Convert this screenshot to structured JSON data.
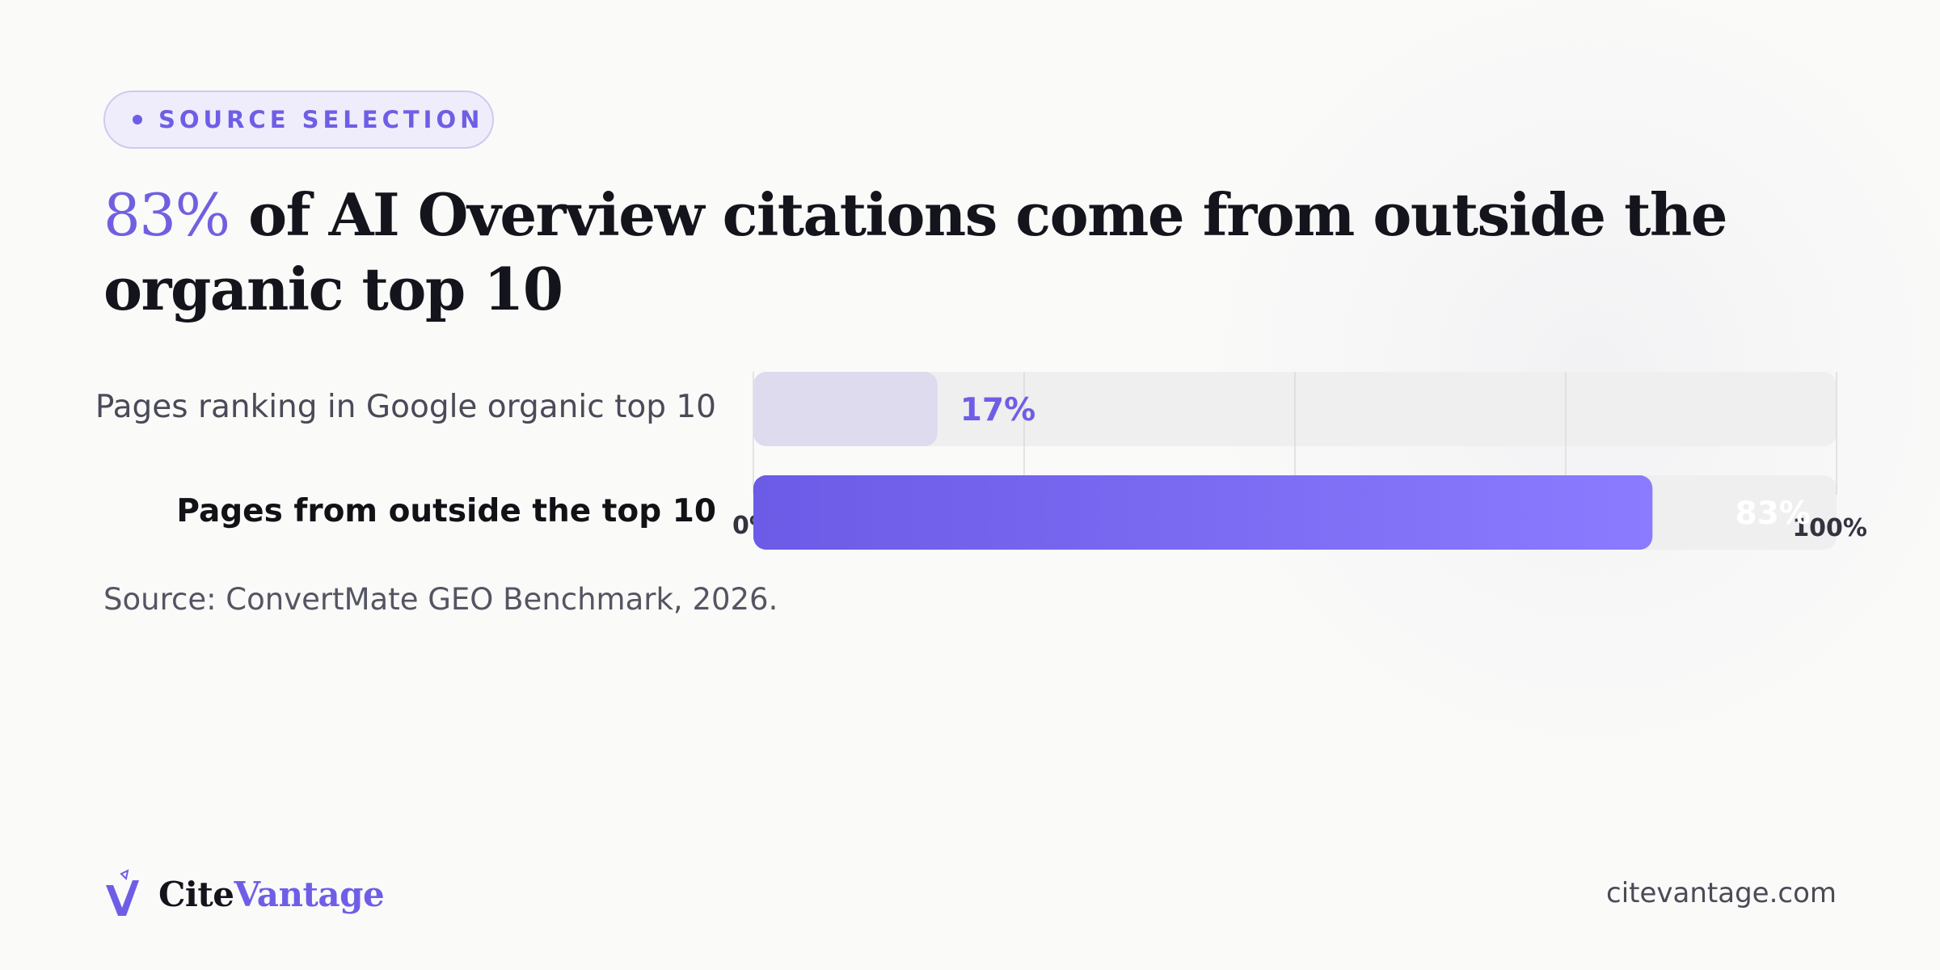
{
  "badge": {
    "label": "SOURCE SELECTION"
  },
  "headline": {
    "highlight": "83%",
    "rest_line1": " of AI Overview citations come from outside the",
    "rest_line2": "organic top 10"
  },
  "chart_data": {
    "type": "bar",
    "orientation": "horizontal",
    "categories": [
      "Pages ranking in Google organic top 10",
      "Pages from outside the top 10"
    ],
    "values": [
      17,
      83
    ],
    "value_labels": [
      "17%",
      "83%"
    ],
    "xlim": [
      0,
      100
    ],
    "tick_labels": [
      "0%",
      "100%"
    ],
    "grid": true,
    "colors": {
      "bar1": "#dedbee",
      "bar2_start": "#6b5be6",
      "bar2_end": "#8b7bff",
      "track": "#efefef",
      "label1": "#6e5ee6",
      "label2": "#ffffff"
    }
  },
  "source": "Source: ConvertMate GEO Benchmark, 2026.",
  "footer": {
    "brand_cite": "Cite",
    "brand_vantage": "Vantage",
    "logo_icon": "v-check-logo-icon",
    "site": "citevantage.com"
  }
}
